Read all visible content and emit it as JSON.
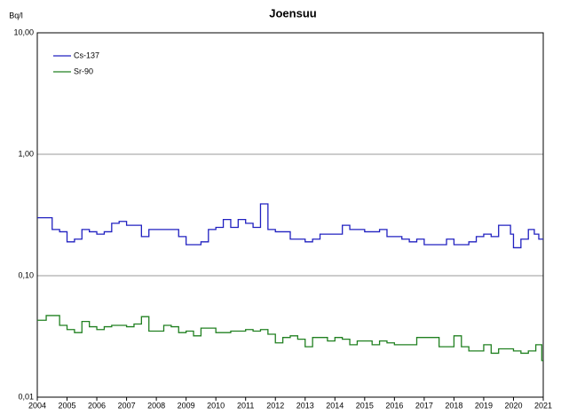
{
  "chart_data": {
    "type": "step",
    "title": "Joensuu",
    "y_label": "Bq/l",
    "log_y": true,
    "grid": true,
    "legend": "upper left",
    "xlim": [
      2004,
      2021
    ],
    "xticks": [
      2004,
      2005,
      2006,
      2007,
      2008,
      2009,
      2010,
      2011,
      2012,
      2013,
      2014,
      2015,
      2016,
      2017,
      2018,
      2019,
      2020,
      2021
    ],
    "ylim": [
      0.01,
      10
    ],
    "yticks": [
      {
        "value": 0.01,
        "label": "0,01"
      },
      {
        "value": 0.1,
        "label": "0,10"
      },
      {
        "value": 1,
        "label": "1,00"
      },
      {
        "value": 10,
        "label": "10,00"
      }
    ],
    "series": [
      {
        "name": "Cs-137",
        "color": "#2020c0",
        "x": [
          2004.0,
          2004.5,
          2004.75,
          2005.0,
          2005.25,
          2005.5,
          2005.75,
          2006.0,
          2006.25,
          2006.5,
          2006.75,
          2007.0,
          2007.5,
          2007.75,
          2008.75,
          2009.0,
          2009.5,
          2009.75,
          2010.0,
          2010.25,
          2010.5,
          2010.75,
          2011.0,
          2011.25,
          2011.5,
          2011.75,
          2012.0,
          2012.5,
          2013.0,
          2013.25,
          2013.5,
          2014.25,
          2014.5,
          2014.75,
          2015.0,
          2015.5,
          2015.75,
          2016.25,
          2016.5,
          2016.75,
          2017.0,
          2017.5,
          2017.75,
          2018.0,
          2018.5,
          2018.75,
          2019.0,
          2019.25,
          2019.5,
          2019.9,
          2020.0,
          2020.25,
          2020.5,
          2020.7,
          2020.85
        ],
        "values": [
          0.3,
          0.24,
          0.23,
          0.19,
          0.2,
          0.24,
          0.23,
          0.22,
          0.23,
          0.27,
          0.28,
          0.26,
          0.21,
          0.24,
          0.21,
          0.18,
          0.19,
          0.24,
          0.25,
          0.29,
          0.25,
          0.29,
          0.27,
          0.25,
          0.39,
          0.24,
          0.23,
          0.2,
          0.19,
          0.2,
          0.22,
          0.26,
          0.24,
          0.24,
          0.23,
          0.24,
          0.21,
          0.2,
          0.19,
          0.2,
          0.18,
          0.18,
          0.2,
          0.18,
          0.19,
          0.21,
          0.22,
          0.21,
          0.26,
          0.22,
          0.17,
          0.2,
          0.24,
          0.22,
          0.2
        ]
      },
      {
        "name": "Sr-90",
        "color": "#208020",
        "x": [
          2004.0,
          2004.3,
          2004.75,
          2005.0,
          2005.25,
          2005.5,
          2005.75,
          2006.0,
          2006.25,
          2006.5,
          2007.0,
          2007.25,
          2007.5,
          2007.75,
          2008.25,
          2008.5,
          2008.75,
          2009.0,
          2009.25,
          2009.5,
          2010.0,
          2010.5,
          2011.0,
          2011.25,
          2011.5,
          2011.75,
          2012.0,
          2012.25,
          2012.5,
          2012.75,
          2013.0,
          2013.25,
          2013.75,
          2014.0,
          2014.25,
          2014.5,
          2014.75,
          2015.25,
          2015.5,
          2015.75,
          2016.0,
          2016.5,
          2016.75,
          2017.5,
          2018.0,
          2018.25,
          2018.5,
          2019.0,
          2019.25,
          2019.5,
          2019.75,
          2020.0,
          2020.25,
          2020.5,
          2020.75,
          2020.95
        ],
        "values": [
          0.043,
          0.047,
          0.039,
          0.036,
          0.034,
          0.042,
          0.038,
          0.036,
          0.038,
          0.039,
          0.038,
          0.04,
          0.046,
          0.035,
          0.039,
          0.038,
          0.034,
          0.035,
          0.032,
          0.037,
          0.034,
          0.035,
          0.036,
          0.035,
          0.036,
          0.033,
          0.028,
          0.031,
          0.032,
          0.03,
          0.026,
          0.031,
          0.029,
          0.031,
          0.03,
          0.027,
          0.029,
          0.027,
          0.029,
          0.028,
          0.027,
          0.027,
          0.031,
          0.026,
          0.032,
          0.026,
          0.024,
          0.027,
          0.023,
          0.025,
          0.025,
          0.024,
          0.023,
          0.024,
          0.027,
          0.02
        ]
      }
    ]
  }
}
